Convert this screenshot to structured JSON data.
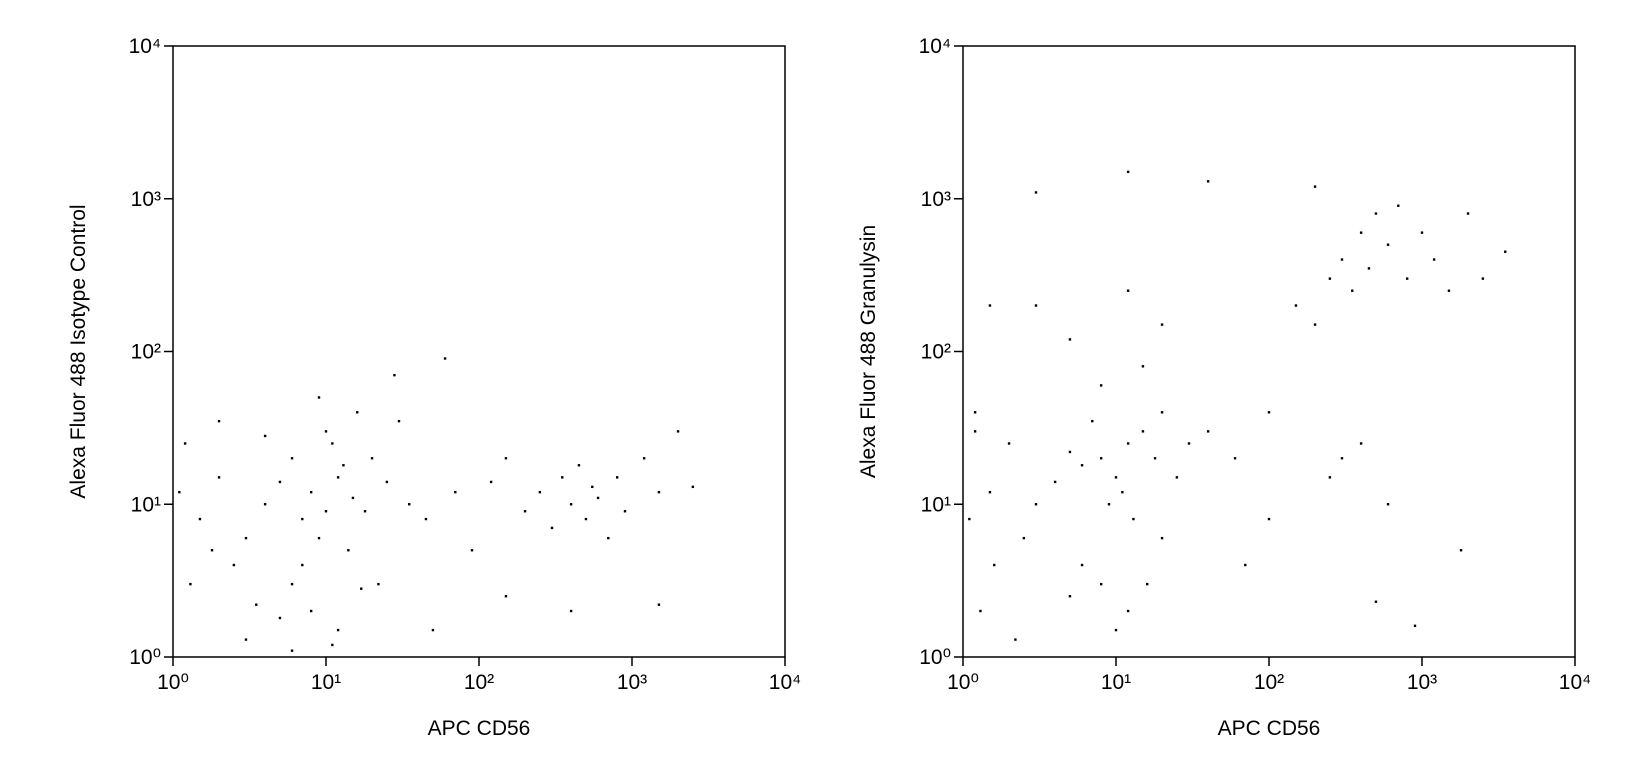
{
  "chart_data": [
    {
      "type": "scatter",
      "xlabel": "APC CD56",
      "ylabel": "Alexa Fluor 488 Isotype Control",
      "color": "#000000",
      "log_x": true,
      "log_y": true,
      "xlim": [
        1,
        10000
      ],
      "ylim": [
        1,
        10000
      ],
      "xticks": [
        {
          "value": 1,
          "label": "10⁰"
        },
        {
          "value": 10,
          "label": "10¹"
        },
        {
          "value": 100,
          "label": "10²"
        },
        {
          "value": 1000,
          "label": "10³"
        },
        {
          "value": 10000,
          "label": "10⁴"
        }
      ],
      "yticks": [
        {
          "value": 1,
          "label": "10⁰"
        },
        {
          "value": 10,
          "label": "10¹"
        },
        {
          "value": 100,
          "label": "10²"
        },
        {
          "value": 1000,
          "label": "10³"
        },
        {
          "value": 10000,
          "label": "10⁴"
        }
      ],
      "x": [
        8,
        10,
        12,
        6,
        9,
        15,
        11,
        7,
        13,
        5,
        18,
        10,
        4,
        3,
        2,
        1.5,
        1.2,
        2.5,
        6,
        8,
        12,
        5,
        3,
        1.3,
        20,
        25,
        30,
        35,
        45,
        60,
        70,
        90,
        120,
        150,
        200,
        250,
        300,
        350,
        400,
        450,
        500,
        550,
        600,
        700,
        800,
        900,
        1200,
        1500,
        2000,
        2500,
        150,
        400,
        1500,
        50,
        28,
        16,
        9,
        7,
        14,
        4,
        2,
        1.1,
        1.8,
        22,
        17,
        11,
        6,
        3.5
      ],
      "y": [
        12,
        9,
        15,
        20,
        6,
        11,
        25,
        8,
        18,
        14,
        9,
        30,
        10,
        6,
        15,
        8,
        25,
        4,
        3,
        2,
        1.5,
        1.8,
        1.3,
        3,
        20,
        14,
        35,
        10,
        8,
        90,
        12,
        5,
        14,
        20,
        9,
        12,
        7,
        15,
        10,
        18,
        8,
        13,
        11,
        6,
        15,
        9,
        20,
        12,
        30,
        13,
        2.5,
        2,
        2.2,
        1.5,
        70,
        40,
        50,
        4,
        5,
        28,
        35,
        12,
        5,
        3,
        2.8,
        1.2,
        1.1,
        2.2
      ]
    },
    {
      "type": "scatter",
      "xlabel": "APC CD56",
      "ylabel": "Alexa Fluor 488 Granulysin",
      "color": "#000000",
      "log_x": true,
      "log_y": true,
      "xlim": [
        1,
        10000
      ],
      "ylim": [
        1,
        10000
      ],
      "xticks": [
        {
          "value": 1,
          "label": "10⁰"
        },
        {
          "value": 10,
          "label": "10¹"
        },
        {
          "value": 100,
          "label": "10²"
        },
        {
          "value": 1000,
          "label": "10³"
        },
        {
          "value": 10000,
          "label": "10⁴"
        }
      ],
      "yticks": [
        {
          "value": 1,
          "label": "10⁰"
        },
        {
          "value": 10,
          "label": "10¹"
        },
        {
          "value": 100,
          "label": "10²"
        },
        {
          "value": 1000,
          "label": "10³"
        },
        {
          "value": 10000,
          "label": "10⁴"
        }
      ],
      "x": [
        8,
        10,
        12,
        6,
        9,
        15,
        11,
        7,
        13,
        5,
        18,
        4,
        3,
        2,
        1.5,
        1.2,
        2.5,
        6,
        8,
        12,
        10,
        5,
        1.3,
        20,
        25,
        30,
        40,
        60,
        8,
        15,
        5,
        3,
        12,
        20,
        1.5,
        1.2,
        100,
        150,
        200,
        250,
        300,
        350,
        400,
        450,
        500,
        600,
        700,
        800,
        1000,
        1200,
        1500,
        2000,
        2500,
        3500,
        300,
        400,
        250,
        600,
        1800,
        500,
        900,
        12,
        3,
        40,
        200,
        100,
        70,
        1.1,
        1.6,
        2.2,
        20,
        16
      ],
      "y": [
        20,
        15,
        25,
        18,
        10,
        30,
        12,
        35,
        8,
        22,
        20,
        14,
        10,
        25,
        12,
        40,
        6,
        4,
        3,
        2,
        1.5,
        2.5,
        2,
        40,
        15,
        25,
        30,
        20,
        60,
        80,
        120,
        200,
        250,
        150,
        200,
        30,
        40,
        200,
        150,
        300,
        400,
        250,
        600,
        350,
        800,
        500,
        900,
        300,
        600,
        400,
        250,
        800,
        300,
        450,
        20,
        25,
        15,
        10,
        5,
        2.3,
        1.6,
        1500,
        1100,
        1300,
        1200,
        8,
        4,
        8,
        4,
        1.3,
        6,
        3
      ]
    }
  ]
}
